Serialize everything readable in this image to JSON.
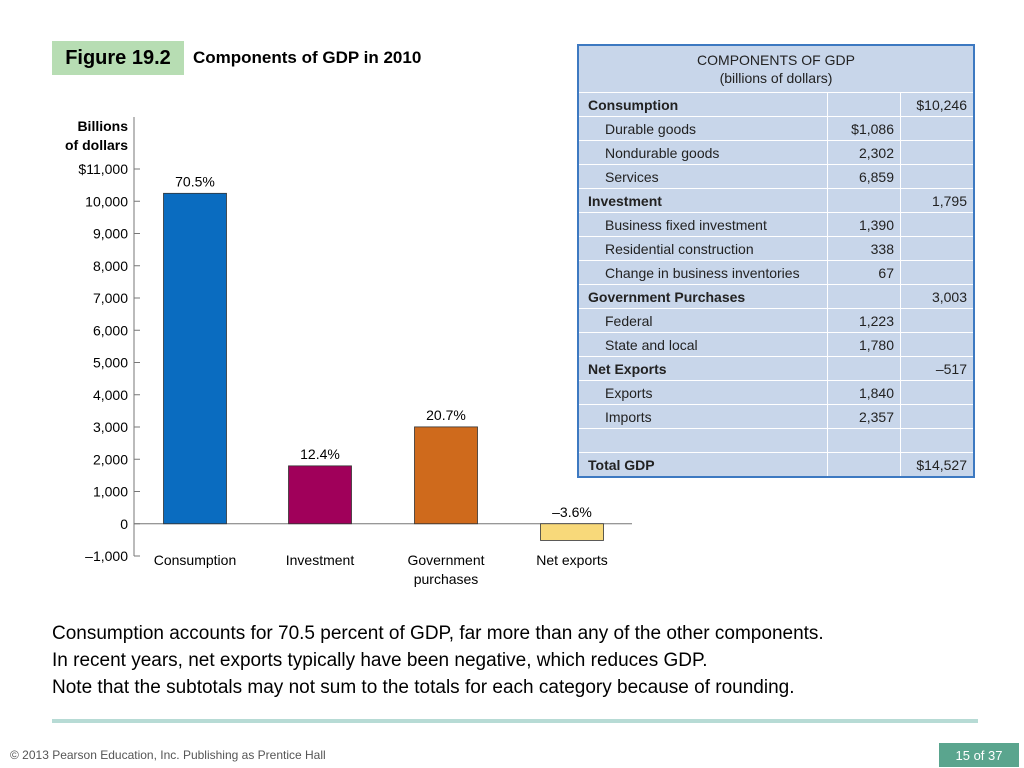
{
  "figure": {
    "label": "Figure 19.2",
    "title": "Components of GDP in 2010"
  },
  "chart_data": {
    "type": "bar",
    "ylabel_lines": [
      "Billions",
      "of dollars"
    ],
    "ylim": [
      -1000,
      11000
    ],
    "y_ticks": [
      {
        "value": 11000,
        "label": "$11,000"
      },
      {
        "value": 10000,
        "label": "10,000"
      },
      {
        "value": 9000,
        "label": "9,000"
      },
      {
        "value": 8000,
        "label": "8,000"
      },
      {
        "value": 7000,
        "label": "7,000"
      },
      {
        "value": 6000,
        "label": "6,000"
      },
      {
        "value": 5000,
        "label": "5,000"
      },
      {
        "value": 4000,
        "label": "4,000"
      },
      {
        "value": 3000,
        "label": "3,000"
      },
      {
        "value": 2000,
        "label": "2,000"
      },
      {
        "value": 1000,
        "label": "1,000"
      },
      {
        "value": 0,
        "label": "0"
      },
      {
        "value": -1000,
        "label": "–1,000"
      }
    ],
    "bars": [
      {
        "category_lines": [
          "Consumption"
        ],
        "value": 10246,
        "pct_label": "70.5%",
        "color": "#0a6cc0"
      },
      {
        "category_lines": [
          "Investment"
        ],
        "value": 1795,
        "pct_label": "12.4%",
        "color": "#a0005a"
      },
      {
        "category_lines": [
          "Government",
          "purchases"
        ],
        "value": 3003,
        "pct_label": "20.7%",
        "color": "#cf6a1c"
      },
      {
        "category_lines": [
          "Net exports"
        ],
        "value": -517,
        "pct_label": "–3.6%",
        "color": "#f8d97a"
      }
    ]
  },
  "table": {
    "header_line1": "COMPONENTS OF GDP",
    "header_line2": "(billions of dollars)",
    "rows": [
      {
        "type": "cat",
        "label": "Consumption",
        "value": "",
        "total": "$10,246"
      },
      {
        "type": "sub",
        "label": "Durable goods",
        "value": "$1,086",
        "total": ""
      },
      {
        "type": "sub",
        "label": "Nondurable goods",
        "value": "2,302",
        "total": ""
      },
      {
        "type": "sub",
        "label": "Services",
        "value": "6,859",
        "total": ""
      },
      {
        "type": "cat",
        "label": "Investment",
        "value": "",
        "total": "1,795"
      },
      {
        "type": "sub",
        "label": "Business fixed investment",
        "value": "1,390",
        "total": ""
      },
      {
        "type": "sub",
        "label": "Residential construction",
        "value": "338",
        "total": ""
      },
      {
        "type": "sub",
        "label": "Change in business inventories",
        "value": "67",
        "total": ""
      },
      {
        "type": "cat",
        "label": "Government Purchases",
        "value": "",
        "total": "3,003"
      },
      {
        "type": "sub",
        "label": "Federal",
        "value": "1,223",
        "total": ""
      },
      {
        "type": "sub",
        "label": "State and local",
        "value": "1,780",
        "total": ""
      },
      {
        "type": "cat",
        "label": "Net Exports",
        "value": "",
        "total": "–517"
      },
      {
        "type": "sub",
        "label": "Exports",
        "value": "1,840",
        "total": ""
      },
      {
        "type": "sub",
        "label": "Imports",
        "value": "2,357",
        "total": ""
      },
      {
        "type": "blank",
        "label": "",
        "value": "",
        "total": ""
      },
      {
        "type": "cat",
        "label": "Total GDP",
        "value": "",
        "total": "$14,527"
      }
    ]
  },
  "caption": [
    "Consumption accounts for 70.5 percent of GDP, far more than any of the other components.",
    "In recent years, net exports typically have been negative, which reduces GDP.",
    "Note that the subtotals may not sum to the totals for each category because of rounding."
  ],
  "footer": {
    "copyright": "© 2013 Pearson Education, Inc. Publishing as Prentice Hall",
    "page": "15 of 37"
  }
}
